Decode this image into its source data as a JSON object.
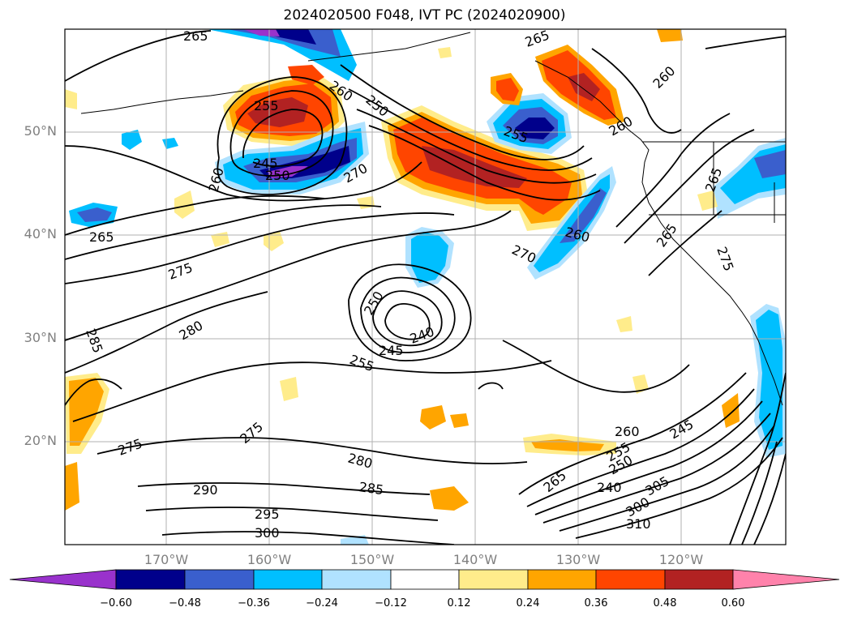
{
  "title": "2024020500 F048, IVT PC (2024020900)",
  "latitude_labels": [
    "50°N",
    "40°N",
    "30°N",
    "20°N"
  ],
  "longitude_labels": [
    "170°W",
    "160°W",
    "150°W",
    "140°W",
    "130°W",
    "120°W"
  ],
  "colorbar": {
    "ticks": [
      "−0.60",
      "−0.48",
      "−0.36",
      "−0.24",
      "−0.12",
      "0.12",
      "0.24",
      "0.36",
      "0.48",
      "0.60"
    ],
    "colors": [
      "#9932cc",
      "#00008b",
      "#3a5fcd",
      "#00bfff",
      "#b0e2ff",
      "#ffffff",
      "#ffec8b",
      "#ffa500",
      "#ff4500",
      "#b22222",
      "#ff82ab"
    ]
  },
  "contour_labels": [
    "265",
    "260",
    "255",
    "250",
    "245",
    "250",
    "270",
    "260",
    "265",
    "265",
    "265",
    "260",
    "255",
    "260",
    "265",
    "260",
    "270",
    "275",
    "275",
    "280",
    "285",
    "250",
    "240",
    "245",
    "255",
    "275",
    "275",
    "280",
    "285",
    "290",
    "295",
    "300",
    "260",
    "255",
    "250",
    "245",
    "240",
    "265",
    "305",
    "300",
    "310"
  ]
}
